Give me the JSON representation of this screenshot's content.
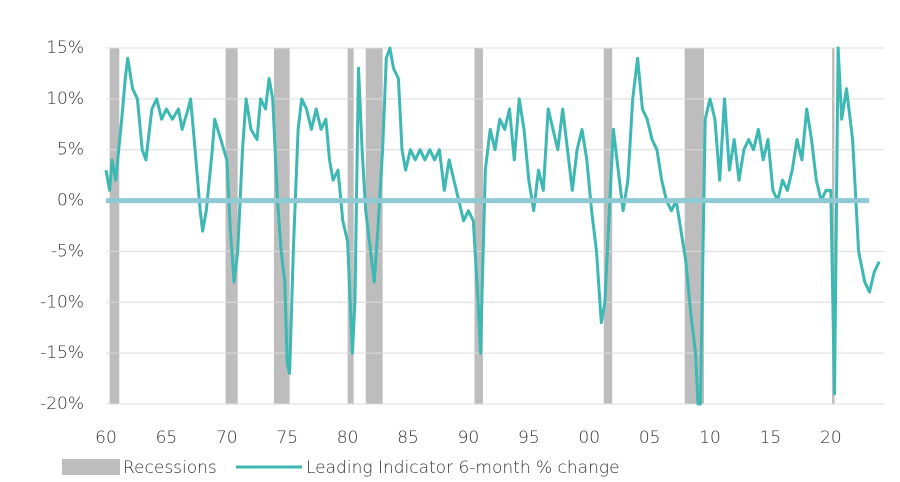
{
  "chart_data": {
    "type": "line",
    "x": [
      1960.0,
      1960.3,
      1960.5,
      1960.8,
      1961.3,
      1961.6,
      1961.8,
      1962.2,
      1962.6,
      1963.0,
      1963.3,
      1963.8,
      1964.2,
      1964.6,
      1965.0,
      1965.5,
      1966.0,
      1966.3,
      1966.8,
      1967.0,
      1967.3,
      1967.8,
      1968.0,
      1968.3,
      1968.8,
      1969.0,
      1969.5,
      1970.0,
      1970.3,
      1970.6,
      1970.9,
      1971.3,
      1971.6,
      1972.0,
      1972.5,
      1972.8,
      1973.2,
      1973.5,
      1973.8,
      1974.2,
      1974.5,
      1974.8,
      1975.0,
      1975.2,
      1975.5,
      1975.9,
      1976.2,
      1976.6,
      1977.0,
      1977.4,
      1977.8,
      1978.2,
      1978.5,
      1978.8,
      1979.2,
      1979.6,
      1980.0,
      1980.4,
      1980.6,
      1980.9,
      1981.2,
      1981.5,
      1981.8,
      1982.2,
      1982.5,
      1982.9,
      1983.2,
      1983.5,
      1983.8,
      1984.2,
      1984.5,
      1984.8,
      1985.2,
      1985.6,
      1986.0,
      1986.4,
      1986.8,
      1987.2,
      1987.6,
      1988.0,
      1988.4,
      1988.8,
      1989.2,
      1989.6,
      1990.0,
      1990.4,
      1990.8,
      1991.0,
      1991.4,
      1991.8,
      1992.2,
      1992.6,
      1993.0,
      1993.4,
      1993.8,
      1994.2,
      1994.6,
      1995.0,
      1995.4,
      1995.8,
      1996.2,
      1996.6,
      1997.0,
      1997.4,
      1997.8,
      1998.2,
      1998.6,
      1999.0,
      1999.4,
      1999.8,
      2000.2,
      2000.6,
      2001.0,
      2001.3,
      2001.7,
      2002.0,
      2002.4,
      2002.8,
      2003.2,
      2003.6,
      2004.0,
      2004.4,
      2004.8,
      2005.2,
      2005.6,
      2006.0,
      2006.4,
      2006.8,
      2007.2,
      2007.6,
      2008.0,
      2008.4,
      2008.8,
      2009.0,
      2009.2,
      2009.6,
      2010.0,
      2010.4,
      2010.8,
      2011.2,
      2011.6,
      2012.0,
      2012.4,
      2012.8,
      2013.2,
      2013.6,
      2014.0,
      2014.4,
      2014.8,
      2015.2,
      2015.6,
      2016.0,
      2016.4,
      2016.8,
      2017.2,
      2017.6,
      2018.0,
      2018.4,
      2018.8,
      2019.2,
      2019.6,
      2020.0,
      2020.3,
      2020.6,
      2020.9,
      2021.3,
      2021.8,
      2022.3,
      2022.8,
      2023.2,
      2023.6,
      2024.0
    ],
    "series": [
      {
        "name": "Leading Indicator 6-month % change",
        "color": "#3db8b2",
        "values": [
          3,
          1,
          4,
          2,
          8,
          12,
          14,
          11,
          10,
          5,
          4,
          9,
          10,
          8,
          9,
          8,
          9,
          7,
          9,
          10,
          6,
          -1,
          -3,
          -1,
          5,
          8,
          6,
          4,
          -3,
          -8,
          -5,
          5,
          10,
          7,
          6,
          10,
          9,
          12,
          10,
          0,
          -5,
          -8,
          -16,
          -17,
          -5,
          7,
          10,
          9,
          7,
          9,
          7,
          8,
          4,
          2,
          3,
          -2,
          -4,
          -15,
          -10,
          13,
          5,
          -1,
          -4,
          -8,
          -3,
          5,
          14,
          15,
          13,
          12,
          5,
          3,
          5,
          4,
          5,
          4,
          5,
          4,
          5,
          1,
          4,
          2,
          0,
          -2,
          -1,
          -2,
          -10,
          -15,
          3,
          7,
          5,
          8,
          7,
          9,
          4,
          10,
          7,
          2,
          -1,
          3,
          1,
          9,
          7,
          5,
          9,
          5,
          1,
          5,
          7,
          4,
          -1,
          -5,
          -12,
          -10,
          0,
          7,
          3,
          -1,
          2,
          10,
          14,
          9,
          8,
          6,
          5,
          2,
          0,
          -1,
          0,
          -3,
          -6,
          -11,
          -15,
          -20,
          -20,
          8,
          10,
          8,
          2,
          10,
          3,
          6,
          2,
          5,
          6,
          5,
          7,
          4,
          6,
          1,
          0,
          2,
          1,
          3,
          6,
          4,
          9,
          6,
          2,
          0,
          1,
          1,
          -19,
          15,
          8,
          11,
          6,
          -5,
          -8,
          -9,
          -7,
          -6
        ]
      }
    ],
    "recessions": {
      "name": "Recessions",
      "color": "#bdbdbd",
      "periods": [
        [
          1960.3,
          1961.1
        ],
        [
          1969.9,
          1970.9
        ],
        [
          1973.9,
          1975.2
        ],
        [
          1980.0,
          1980.5
        ],
        [
          1981.5,
          1982.9
        ],
        [
          1990.5,
          1991.2
        ],
        [
          2001.2,
          2001.9
        ],
        [
          2007.9,
          2009.5
        ],
        [
          2020.1,
          2020.3
        ]
      ]
    },
    "zero_line_color": "#8ec9d6",
    "xlim": [
      1960,
      2024.4
    ],
    "xticks": [
      {
        "value": 1960,
        "label": "60"
      },
      {
        "value": 1965,
        "label": "65"
      },
      {
        "value": 1970,
        "label": "70"
      },
      {
        "value": 1975,
        "label": "75"
      },
      {
        "value": 1980,
        "label": "80"
      },
      {
        "value": 1985,
        "label": "85"
      },
      {
        "value": 1990,
        "label": "90"
      },
      {
        "value": 1995,
        "label": "95"
      },
      {
        "value": 2000,
        "label": "00"
      },
      {
        "value": 2005,
        "label": "05"
      },
      {
        "value": 2010,
        "label": "10"
      },
      {
        "value": 2015,
        "label": "15"
      },
      {
        "value": 2020,
        "label": "20"
      }
    ],
    "ylim": [
      -20,
      15
    ],
    "yticks": [
      {
        "value": -20,
        "label": "-20%"
      },
      {
        "value": -15,
        "label": "-15%"
      },
      {
        "value": -10,
        "label": "-10%"
      },
      {
        "value": -5,
        "label": "-5%"
      },
      {
        "value": 0,
        "label": "0%"
      },
      {
        "value": 5,
        "label": "5%"
      },
      {
        "value": 10,
        "label": "10%"
      },
      {
        "value": 15,
        "label": "15%"
      }
    ],
    "grid": true
  }
}
